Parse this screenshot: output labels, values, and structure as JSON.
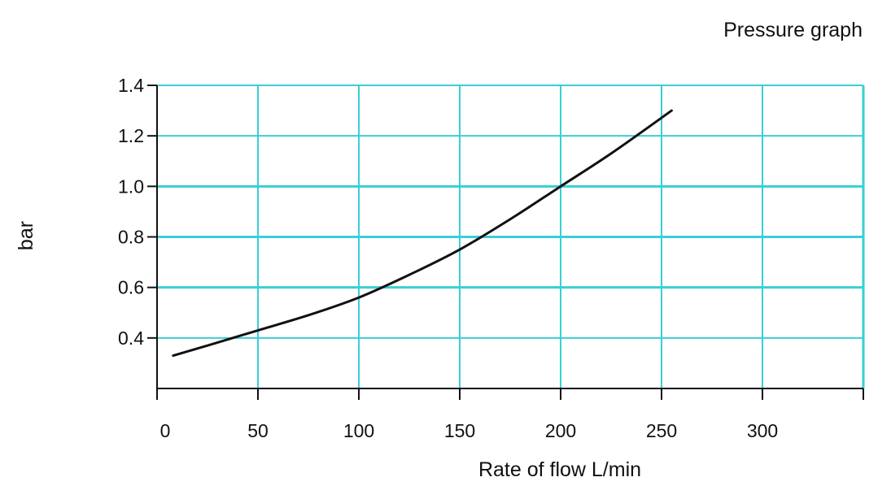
{
  "chart_data": {
    "type": "line",
    "title": "Pressure graph",
    "xlabel": "Rate of flow L/min",
    "ylabel": "bar",
    "xlim": [
      0,
      350
    ],
    "ylim": [
      0.2,
      1.4
    ],
    "x_ticks": [
      0,
      50,
      100,
      150,
      200,
      250,
      300
    ],
    "y_ticks": [
      0.4,
      0.6,
      0.8,
      1.0,
      1.2,
      1.4
    ],
    "x_tick_labels": [
      "0",
      "50",
      "100",
      "150",
      "200",
      "250",
      "300"
    ],
    "y_tick_labels": [
      "0.4",
      "0.6",
      "0.8",
      "1.0",
      "1.2",
      "1.4"
    ],
    "grid": true,
    "colors": {
      "grid": "#39cfd6",
      "line": "#111111",
      "axis": "#111111"
    },
    "series": [
      {
        "x": [
          8,
          25,
          50,
          75,
          100,
          125,
          150,
          175,
          200,
          225,
          255
        ],
        "y": [
          0.33,
          0.37,
          0.43,
          0.49,
          0.56,
          0.65,
          0.75,
          0.87,
          1.0,
          1.13,
          1.3
        ]
      }
    ]
  }
}
